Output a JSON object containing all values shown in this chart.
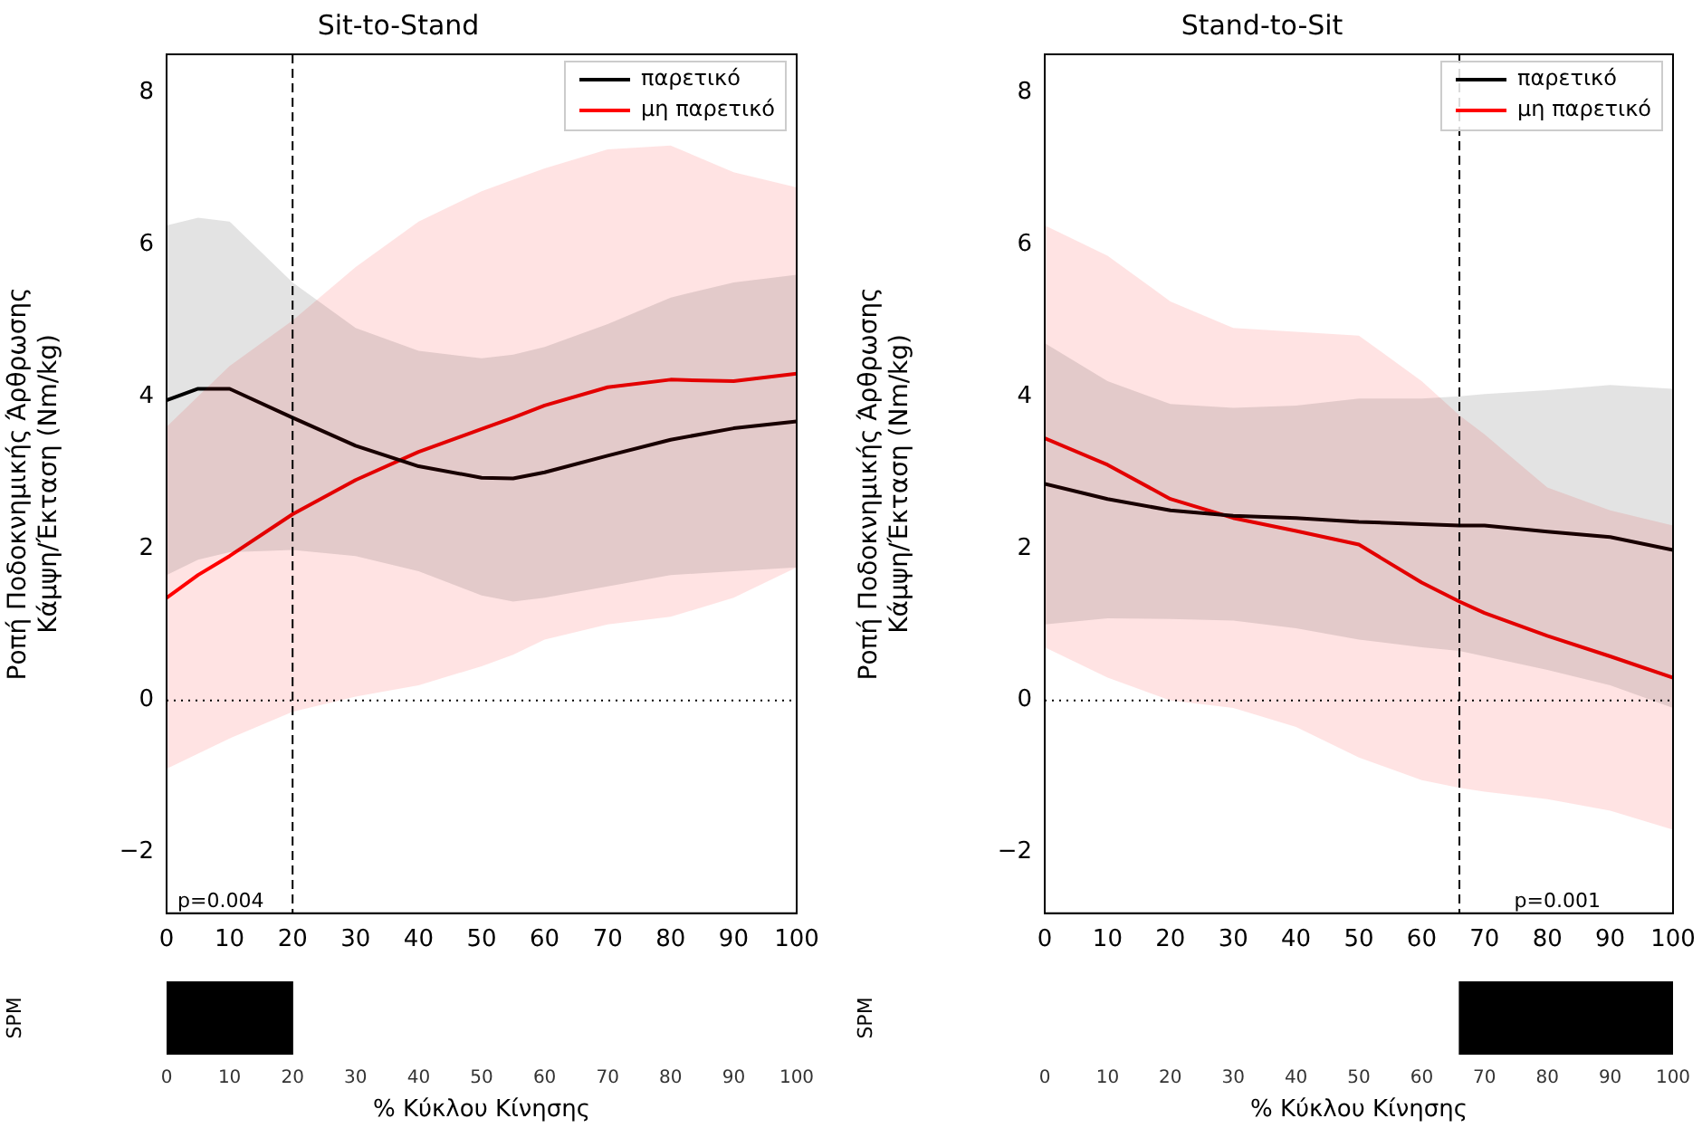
{
  "chart_data": [
    {
      "type": "line",
      "title": "Sit-to-Stand",
      "ylabel": "Ροπή Ποδοκνημικής Άρθρωσης\nΚάμψη/Έκταση (Nm/kg)",
      "x": [
        0,
        5,
        10,
        20,
        30,
        40,
        50,
        55,
        60,
        70,
        80,
        90,
        100
      ],
      "series": [
        {
          "name": "παρετικό",
          "color": "#000000",
          "values": [
            3.95,
            4.1,
            4.1,
            3.72,
            3.35,
            3.08,
            2.93,
            2.92,
            3.0,
            3.22,
            3.43,
            3.58,
            3.67
          ],
          "lower": [
            1.65,
            1.85,
            1.95,
            1.98,
            1.9,
            1.7,
            1.38,
            1.3,
            1.35,
            1.5,
            1.65,
            1.7,
            1.75
          ],
          "upper": [
            6.25,
            6.35,
            6.3,
            5.5,
            4.9,
            4.6,
            4.5,
            4.55,
            4.65,
            4.95,
            5.3,
            5.5,
            5.6
          ]
        },
        {
          "name": "μη παρετικό",
          "color": "#ff0000",
          "values": [
            1.35,
            1.65,
            1.9,
            2.45,
            2.9,
            3.27,
            3.57,
            3.72,
            3.88,
            4.12,
            4.22,
            4.2,
            4.3
          ],
          "lower": [
            -0.9,
            -0.7,
            -0.5,
            -0.15,
            0.05,
            0.2,
            0.45,
            0.6,
            0.8,
            1.0,
            1.1,
            1.35,
            1.75
          ],
          "upper": [
            3.6,
            4.0,
            4.4,
            5.0,
            5.7,
            6.3,
            6.7,
            6.85,
            7.0,
            7.25,
            7.3,
            6.95,
            6.75
          ]
        }
      ],
      "xlim": [
        0,
        100
      ],
      "xticks": [
        0,
        10,
        20,
        30,
        40,
        50,
        60,
        70,
        80,
        90,
        100
      ],
      "ylim": [
        -2.8,
        8.5
      ],
      "yticks": [
        {
          "value": -2,
          "label": "−2"
        },
        0,
        2,
        4,
        6,
        8
      ],
      "ref_lines": [
        {
          "axis": "y",
          "value": 0,
          "line_style": "dotted"
        },
        {
          "axis": "x",
          "value": 20,
          "line_style": "dashed"
        }
      ],
      "annotations": [
        "p=0.004"
      ],
      "legend": "top right"
    },
    {
      "type": "line",
      "title": "Stand-to-Sit",
      "ylabel": "Ροπή Ποδοκνημικής Άρθρωσης\nΚάμψη/Έκταση (Nm/kg)",
      "x": [
        0,
        10,
        20,
        30,
        40,
        50,
        60,
        66,
        70,
        80,
        90,
        100
      ],
      "series": [
        {
          "name": "παρετικό",
          "color": "#000000",
          "values": [
            2.85,
            2.65,
            2.5,
            2.43,
            2.4,
            2.35,
            2.32,
            2.3,
            2.3,
            2.22,
            2.15,
            1.98
          ],
          "lower": [
            1.0,
            1.08,
            1.07,
            1.05,
            0.95,
            0.8,
            0.7,
            0.65,
            0.58,
            0.4,
            0.2,
            -0.1
          ],
          "upper": [
            4.7,
            4.2,
            3.9,
            3.85,
            3.88,
            3.97,
            3.97,
            4.0,
            4.03,
            4.08,
            4.15,
            4.1
          ]
        },
        {
          "name": "μη παρετικό",
          "color": "#ff0000",
          "values": [
            3.45,
            3.1,
            2.65,
            2.4,
            2.23,
            2.05,
            1.55,
            1.3,
            1.15,
            0.85,
            0.58,
            0.3
          ],
          "lower": [
            0.7,
            0.3,
            0.0,
            -0.1,
            -0.35,
            -0.75,
            -1.05,
            -1.15,
            -1.2,
            -1.3,
            -1.45,
            -1.7
          ],
          "upper": [
            6.25,
            5.85,
            5.25,
            4.9,
            4.85,
            4.8,
            4.2,
            3.75,
            3.5,
            2.8,
            2.5,
            2.3
          ]
        }
      ],
      "xlim": [
        0,
        100
      ],
      "xticks": [
        0,
        10,
        20,
        30,
        40,
        50,
        60,
        70,
        80,
        90,
        100
      ],
      "ylim": [
        -2.8,
        8.5
      ],
      "yticks": [
        {
          "value": -2,
          "label": "−2"
        },
        0,
        2,
        4,
        6,
        8
      ],
      "ref_lines": [
        {
          "axis": "y",
          "value": 0,
          "line_style": "dotted"
        },
        {
          "axis": "x",
          "value": 66,
          "line_style": "dashed"
        }
      ],
      "annotations": [
        "p=0.001"
      ],
      "legend": "top right"
    },
    {
      "type": "bar",
      "orientation": "horizontal",
      "categories": [
        null
      ],
      "base": [
        0
      ],
      "values": [
        20
      ],
      "color": "#000000",
      "xlim": [
        0,
        100
      ],
      "xticks": [
        0,
        10,
        20,
        30,
        40,
        50,
        60,
        70,
        80,
        90,
        100
      ],
      "ylabel": "SPM",
      "xlabel": "% Κύκλου Κίνησης",
      "tick_labels": "x"
    },
    {
      "type": "bar",
      "orientation": "horizontal",
      "categories": [
        null
      ],
      "base": [
        66
      ],
      "values": [
        34
      ],
      "color": "#000000",
      "xlim": [
        0,
        100
      ],
      "xticks": [
        0,
        10,
        20,
        30,
        40,
        50,
        60,
        70,
        80,
        90,
        100
      ],
      "ylabel": "SPM",
      "xlabel": "% Κύκλου Κίνησης",
      "tick_labels": "x"
    }
  ]
}
